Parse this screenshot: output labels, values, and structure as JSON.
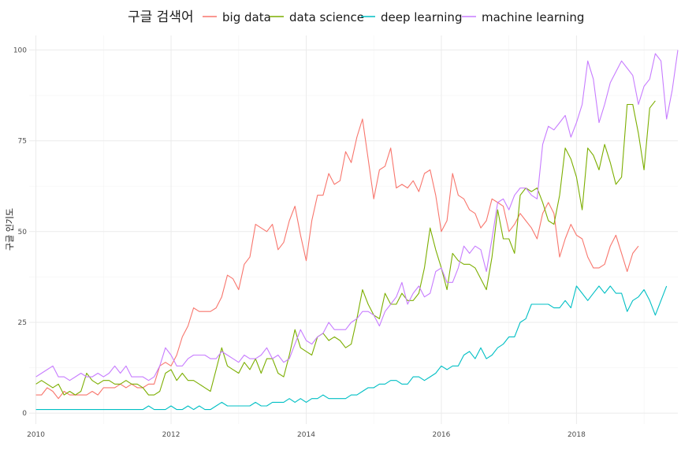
{
  "chart_data": {
    "type": "line",
    "title": "",
    "xlabel": "",
    "ylabel": "구글 인기도",
    "legend": {
      "title": "구글 검색어",
      "position": "top"
    },
    "grid": true,
    "xlim": [
      2009.9,
      2019.5
    ],
    "ylim": [
      -3,
      104
    ],
    "x_ticks": [
      2010,
      2012,
      2014,
      2016,
      2018
    ],
    "y_ticks": [
      0,
      25,
      50,
      75,
      100
    ],
    "x_start": 2010,
    "x_step_months": 1,
    "series": [
      {
        "name": "big data",
        "color": "#F8766D",
        "values": [
          5,
          5,
          7,
          6,
          4,
          6,
          5,
          5,
          5,
          5,
          6,
          5,
          7,
          7,
          7,
          8,
          7,
          8,
          7,
          7,
          8,
          8,
          13,
          14,
          13,
          16,
          21,
          24,
          29,
          28,
          28,
          28,
          29,
          32,
          38,
          37,
          34,
          41,
          43,
          52,
          51,
          50,
          52,
          45,
          47,
          53,
          57,
          49,
          42,
          53,
          60,
          60,
          66,
          63,
          64,
          72,
          69,
          76,
          81,
          70,
          59,
          67,
          68,
          73,
          62,
          63,
          62,
          64,
          61,
          66,
          67,
          60,
          50,
          53,
          66,
          60,
          59,
          56,
          55,
          51,
          53,
          59,
          58,
          57,
          50,
          52,
          55,
          53,
          51,
          48,
          55,
          58,
          55,
          43,
          48,
          52,
          49,
          48,
          43,
          40,
          40,
          41,
          46,
          49,
          44,
          39,
          44,
          46
        ]
      },
      {
        "name": "data science",
        "color": "#7CAE00",
        "values": [
          8,
          9,
          8,
          7,
          8,
          5,
          6,
          5,
          6,
          11,
          9,
          8,
          9,
          9,
          8,
          8,
          9,
          8,
          8,
          7,
          5,
          5,
          6,
          11,
          12,
          9,
          11,
          9,
          9,
          8,
          7,
          6,
          12,
          18,
          13,
          12,
          11,
          14,
          12,
          15,
          11,
          15,
          15,
          11,
          10,
          16,
          23,
          18,
          17,
          16,
          21,
          22,
          20,
          21,
          20,
          18,
          19,
          26,
          34,
          30,
          27,
          26,
          33,
          30,
          30,
          33,
          31,
          31,
          33,
          40,
          51,
          45,
          40,
          34,
          44,
          42,
          41,
          41,
          40,
          37,
          34,
          43,
          56,
          48,
          48,
          44,
          60,
          62,
          61,
          62,
          58,
          53,
          52,
          60,
          73,
          70,
          65,
          56,
          73,
          71,
          67,
          74,
          69,
          63,
          65,
          85,
          85,
          77,
          67,
          84,
          86
        ]
      },
      {
        "name": "deep learning",
        "color": "#00BFC4",
        "values": [
          1,
          1,
          1,
          1,
          1,
          1,
          1,
          1,
          1,
          1,
          1,
          1,
          1,
          1,
          1,
          1,
          1,
          1,
          1,
          1,
          2,
          1,
          1,
          1,
          2,
          1,
          1,
          2,
          1,
          2,
          1,
          1,
          2,
          3,
          2,
          2,
          2,
          2,
          2,
          3,
          2,
          2,
          3,
          3,
          3,
          4,
          3,
          4,
          3,
          4,
          4,
          5,
          4,
          4,
          4,
          4,
          5,
          5,
          6,
          7,
          7,
          8,
          8,
          9,
          9,
          8,
          8,
          10,
          10,
          9,
          10,
          11,
          13,
          12,
          13,
          13,
          16,
          17,
          15,
          18,
          15,
          16,
          18,
          19,
          21,
          21,
          25,
          26,
          30,
          30,
          30,
          30,
          29,
          29,
          31,
          29,
          35,
          33,
          31,
          33,
          35,
          33,
          35,
          33,
          33,
          28,
          31,
          32,
          34,
          31,
          27,
          31,
          35
        ]
      },
      {
        "name": "machine learning",
        "color": "#C77CFF",
        "values": [
          10,
          11,
          12,
          13,
          10,
          10,
          9,
          10,
          11,
          10,
          10,
          11,
          10,
          11,
          13,
          11,
          13,
          10,
          10,
          10,
          9,
          10,
          13,
          18,
          16,
          13,
          13,
          15,
          16,
          16,
          16,
          15,
          15,
          17,
          16,
          15,
          14,
          16,
          15,
          15,
          16,
          18,
          15,
          16,
          14,
          15,
          19,
          23,
          20,
          19,
          21,
          22,
          25,
          23,
          23,
          23,
          25,
          26,
          28,
          28,
          27,
          24,
          28,
          30,
          32,
          36,
          30,
          33,
          35,
          32,
          33,
          39,
          40,
          36,
          36,
          40,
          46,
          44,
          46,
          45,
          39,
          48,
          58,
          59,
          56,
          60,
          62,
          62,
          60,
          59,
          74,
          79,
          78,
          80,
          82,
          76,
          80,
          85,
          97,
          92,
          80,
          85,
          91,
          94,
          97,
          95,
          93,
          85,
          90,
          92,
          99,
          97,
          81,
          89,
          100
        ]
      }
    ]
  }
}
